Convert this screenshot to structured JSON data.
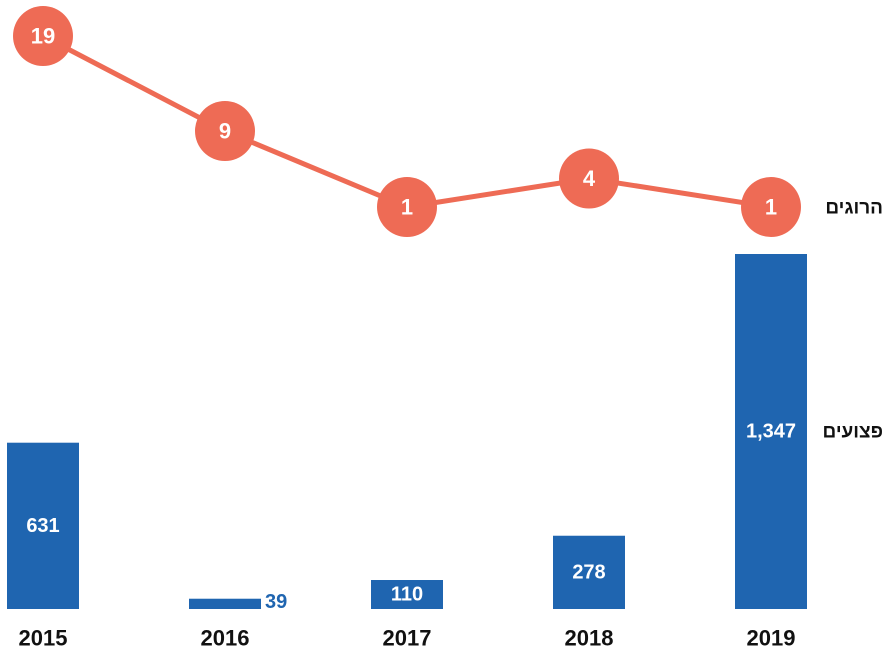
{
  "chart_data": [
    {
      "type": "bar",
      "categories": [
        "2015",
        "2016",
        "2017",
        "2018",
        "2019"
      ],
      "series": [
        {
          "name": "פצועים",
          "color": "#1f65b0",
          "values": [
            631,
            39,
            110,
            278,
            1347
          ],
          "value_labels": [
            "631",
            "39",
            "110",
            "278",
            "1,347"
          ]
        }
      ]
    },
    {
      "type": "line",
      "series": [
        {
          "name": "הרוגים",
          "color": "#ee6b55",
          "values": [
            19,
            9,
            1,
            4,
            1
          ]
        }
      ]
    }
  ]
}
